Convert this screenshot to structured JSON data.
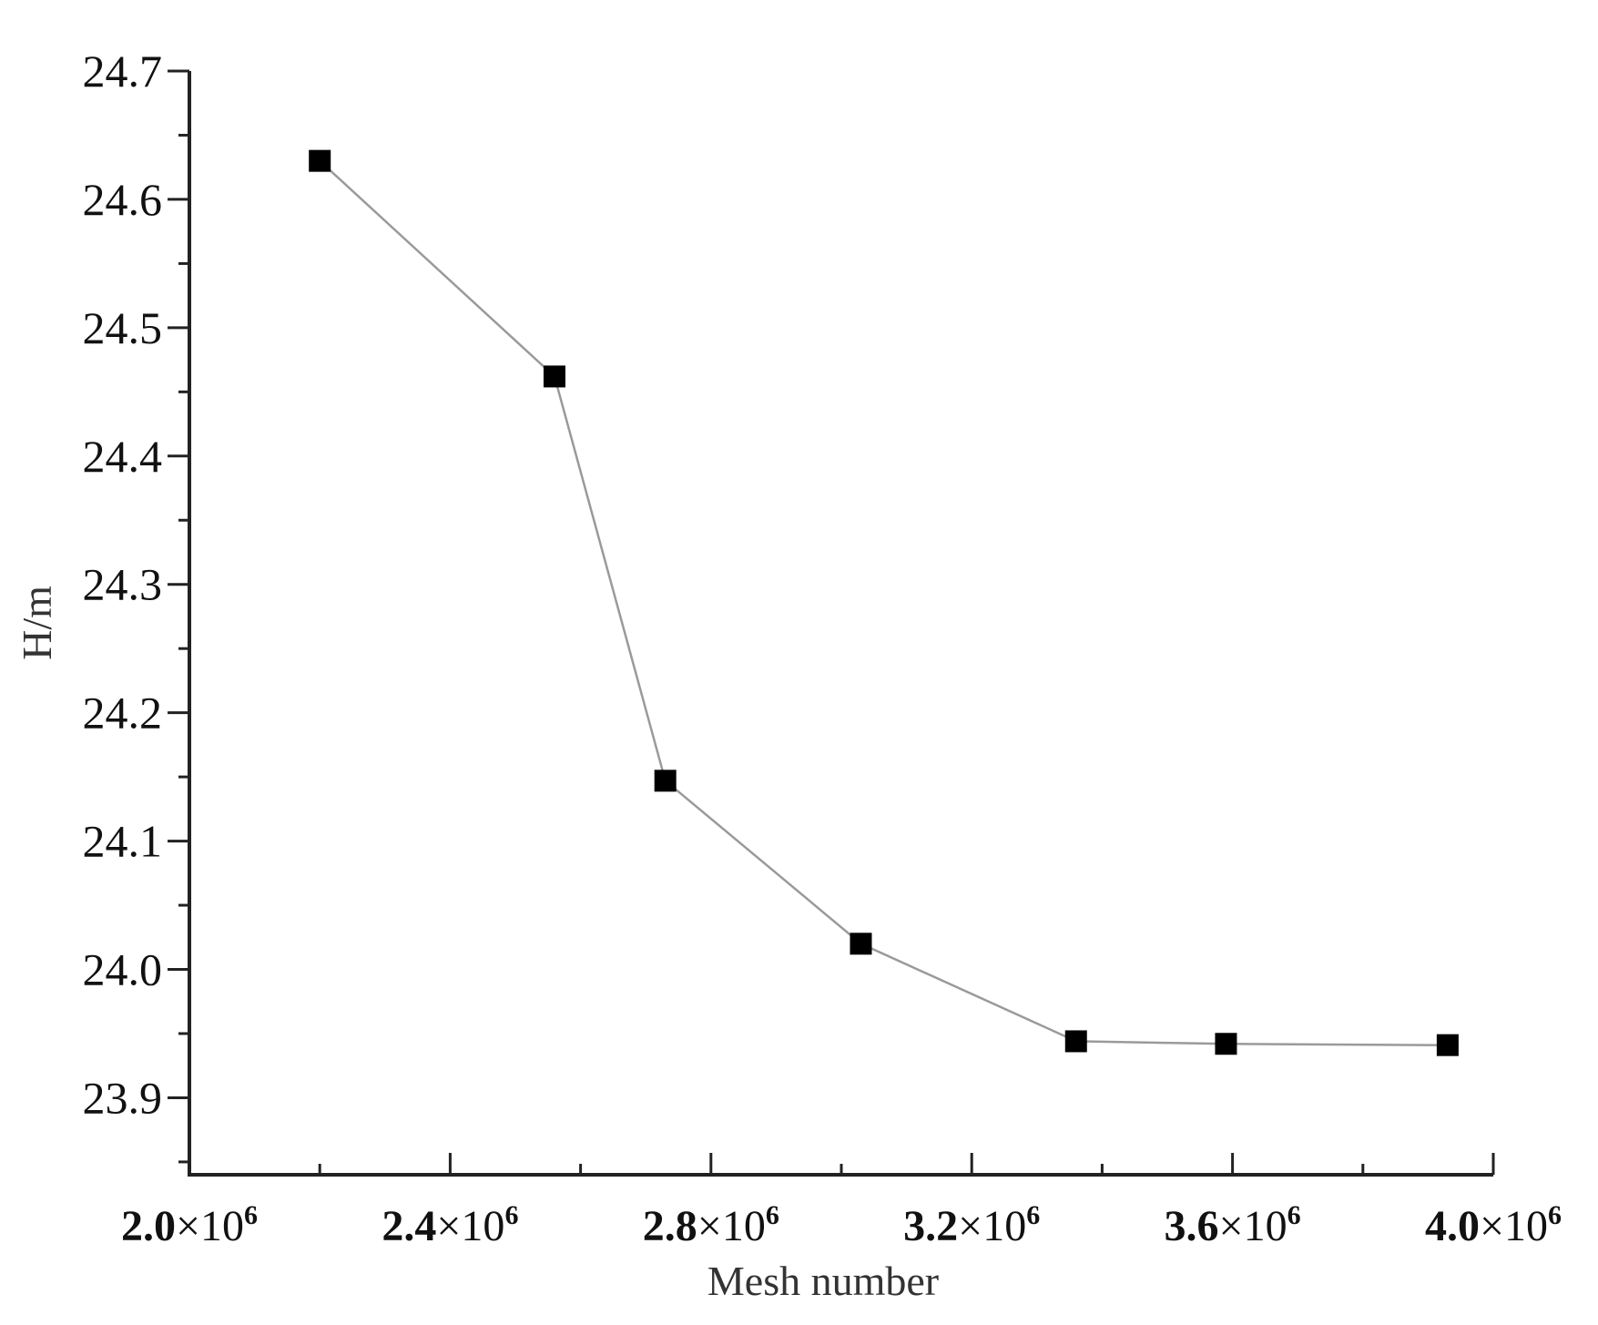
{
  "chart_data": {
    "type": "line",
    "xlabel": "Mesh number",
    "ylabel": "H/m",
    "xlim": [
      2000000,
      4000000
    ],
    "ylim": [
      23.84,
      24.7
    ],
    "x_ticks": [
      {
        "value": 2000000,
        "mantissa": "2.0",
        "times": "×10",
        "exp": "6"
      },
      {
        "value": 2400000,
        "mantissa": "2.4",
        "times": "×10",
        "exp": "6"
      },
      {
        "value": 2800000,
        "mantissa": "2.8",
        "times": "×10",
        "exp": "6"
      },
      {
        "value": 3200000,
        "mantissa": "3.2",
        "times": "×10",
        "exp": "6"
      },
      {
        "value": 3600000,
        "mantissa": "3.6",
        "times": "×10",
        "exp": "6"
      },
      {
        "value": 4000000,
        "mantissa": "4.0",
        "times": "×10",
        "exp": "6"
      }
    ],
    "y_ticks": [
      {
        "value": 23.9,
        "label": "23.9"
      },
      {
        "value": 24.0,
        "label": "24.0"
      },
      {
        "value": 24.1,
        "label": "24.1"
      },
      {
        "value": 24.2,
        "label": "24.2"
      },
      {
        "value": 24.3,
        "label": "24.3"
      },
      {
        "value": 24.4,
        "label": "24.4"
      },
      {
        "value": 24.5,
        "label": "24.5"
      },
      {
        "value": 24.6,
        "label": "24.6"
      },
      {
        "value": 24.7,
        "label": "24.7"
      }
    ],
    "series": [
      {
        "x": [
          2200000,
          2560000,
          2730000,
          3030000,
          3360000,
          3590000,
          3930000
        ],
        "y": [
          24.63,
          24.462,
          24.147,
          24.02,
          23.944,
          23.942,
          23.941
        ],
        "line_color": "#9a9a9a",
        "marker": "square",
        "marker_color": "#000000"
      }
    ],
    "grid": false,
    "legend": "none"
  }
}
